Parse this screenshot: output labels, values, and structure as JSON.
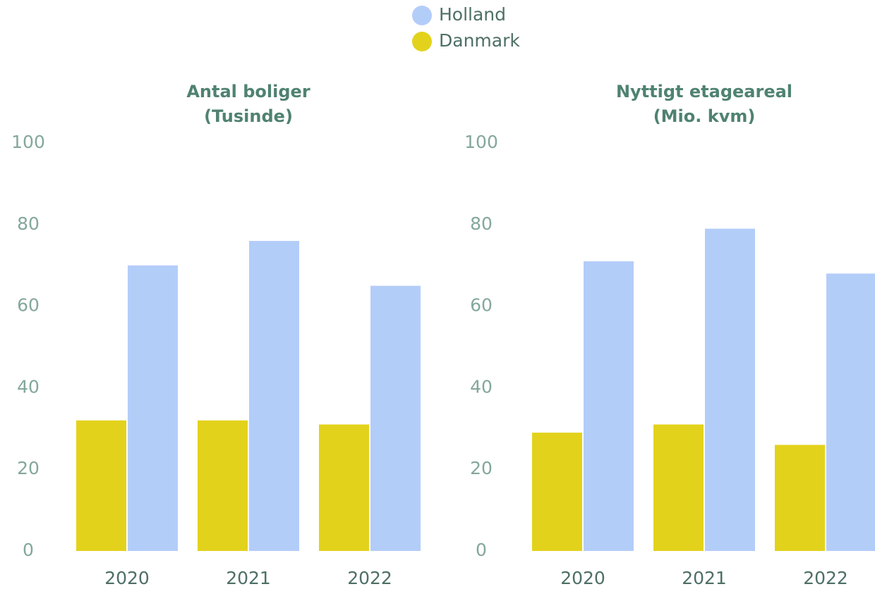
{
  "chart_data": [
    {
      "type": "bar",
      "title": "Antal boliger",
      "subtitle": "(Tusinde)",
      "categories": [
        "2020",
        "2021",
        "2022"
      ],
      "series": [
        {
          "name": "Danmark",
          "color": "#e3d21c",
          "values": [
            32,
            32,
            31
          ]
        },
        {
          "name": "Holland",
          "color": "#b3cdf9",
          "values": [
            70,
            76,
            65
          ]
        }
      ],
      "ylim": [
        0,
        100
      ],
      "yticks": [
        0,
        20,
        40,
        60,
        80,
        100
      ],
      "grid": false
    },
    {
      "type": "bar",
      "title": "Nyttigt etageareal",
      "subtitle": "(Mio. kvm)",
      "categories": [
        "2020",
        "2021",
        "2022"
      ],
      "series": [
        {
          "name": "Danmark",
          "color": "#e3d21c",
          "values": [
            29,
            31,
            26
          ]
        },
        {
          "name": "Holland",
          "color": "#b3cdf9",
          "values": [
            71,
            79,
            68
          ]
        }
      ],
      "ylim": [
        0,
        100
      ],
      "yticks": [
        0,
        20,
        40,
        60,
        80,
        100
      ],
      "grid": false
    }
  ]
}
